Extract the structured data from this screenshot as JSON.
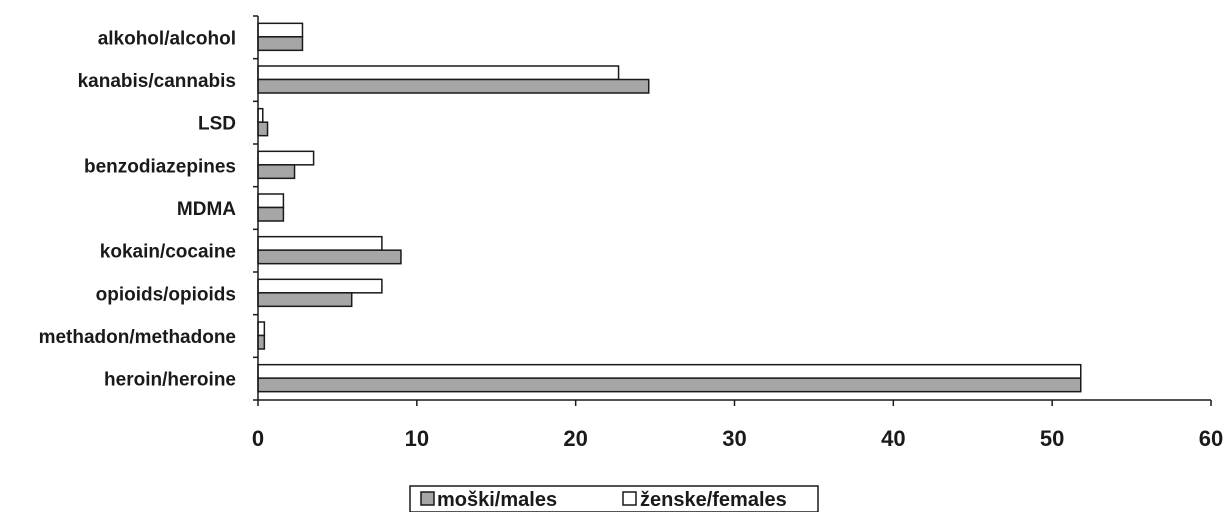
{
  "chart_data": {
    "type": "bar",
    "orientation": "horizontal",
    "categories": [
      "alkohol/alcohol",
      "kanabis/cannabis",
      "LSD",
      "benzodiazepines",
      "MDMA",
      "kokain/cocaine",
      "opioids/opioids",
      "methadon/methadone",
      "heroin/heroine"
    ],
    "series": [
      {
        "name": "moški/males",
        "color": "#a6a6a6",
        "values": [
          2.8,
          24.6,
          0.6,
          2.3,
          1.6,
          9.0,
          5.9,
          0.4,
          51.8
        ]
      },
      {
        "name": "ženske/females",
        "color": "#ffffff",
        "values": [
          2.8,
          22.7,
          0.3,
          3.5,
          1.6,
          7.8,
          7.8,
          0.4,
          51.8
        ]
      }
    ],
    "xlim": [
      0,
      60
    ],
    "xticks": [
      "0",
      "10",
      "20",
      "30",
      "40",
      "50",
      "60"
    ],
    "title": "",
    "xlabel": "",
    "ylabel": "",
    "grid": false,
    "legend": "bottom-center"
  }
}
